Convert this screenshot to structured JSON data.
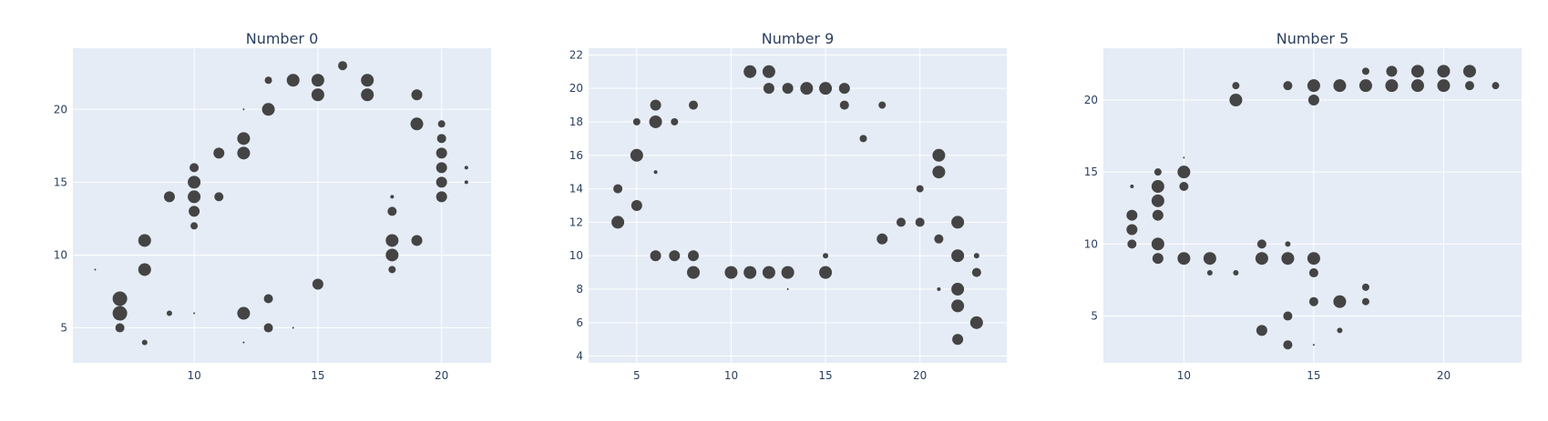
{
  "figure": {
    "background": "#ffffff",
    "plot_bg": "#e5ecf6",
    "grid_color": "#ffffff",
    "marker_color": "#444444",
    "text_color": "#2a3f5f"
  },
  "chart_data": [
    {
      "type": "scatter",
      "title": "Number 0",
      "xlabel": "",
      "ylabel": "",
      "xlim": [
        5.1,
        22.0
      ],
      "ylim": [
        2.6,
        24.2
      ],
      "xticks": [
        10,
        15,
        20
      ],
      "yticks": [
        5,
        10,
        15,
        20
      ],
      "grid": true,
      "legend": "none",
      "points": [
        [
          6,
          9,
          1
        ],
        [
          7,
          7,
          8
        ],
        [
          7,
          6,
          8
        ],
        [
          7,
          5,
          5
        ],
        [
          8,
          11,
          7
        ],
        [
          8,
          9,
          7
        ],
        [
          8,
          4,
          3
        ],
        [
          9,
          14,
          6
        ],
        [
          9,
          6,
          3
        ],
        [
          10,
          16,
          5
        ],
        [
          10,
          15,
          7
        ],
        [
          10,
          14,
          7
        ],
        [
          10,
          13,
          6
        ],
        [
          10,
          12,
          4
        ],
        [
          10,
          6,
          1
        ],
        [
          11,
          17,
          6
        ],
        [
          11,
          14,
          5
        ],
        [
          12,
          20,
          1
        ],
        [
          12,
          18,
          7
        ],
        [
          12,
          17,
          7
        ],
        [
          12,
          6,
          7
        ],
        [
          12,
          4,
          1
        ],
        [
          13,
          22,
          4
        ],
        [
          13,
          20,
          7
        ],
        [
          13,
          7,
          5
        ],
        [
          13,
          5,
          5
        ],
        [
          14,
          22,
          7
        ],
        [
          14,
          5,
          1
        ],
        [
          15,
          22,
          7
        ],
        [
          15,
          21,
          7
        ],
        [
          15,
          8,
          6
        ],
        [
          16,
          23,
          5
        ],
        [
          17,
          22,
          7
        ],
        [
          17,
          21,
          7
        ],
        [
          18,
          14,
          2
        ],
        [
          18,
          13,
          5
        ],
        [
          18,
          11,
          7
        ],
        [
          18,
          10,
          7
        ],
        [
          18,
          9,
          4
        ],
        [
          19,
          21,
          6
        ],
        [
          19,
          19,
          7
        ],
        [
          19,
          11,
          6
        ],
        [
          20,
          19,
          4
        ],
        [
          20,
          18,
          5
        ],
        [
          20,
          17,
          6
        ],
        [
          20,
          16,
          6
        ],
        [
          20,
          15,
          6
        ],
        [
          20,
          14,
          6
        ],
        [
          21,
          16,
          2
        ],
        [
          21,
          15,
          2
        ]
      ]
    },
    {
      "type": "scatter",
      "title": "Number 9",
      "xlabel": "",
      "ylabel": "",
      "xlim": [
        2.45,
        24.6
      ],
      "ylim": [
        3.6,
        22.4
      ],
      "xticks": [
        5,
        10,
        15,
        20
      ],
      "yticks": [
        4,
        6,
        8,
        10,
        12,
        14,
        16,
        18,
        20,
        22
      ],
      "grid": true,
      "legend": "none",
      "points": [
        [
          4,
          14,
          5
        ],
        [
          4,
          12,
          7
        ],
        [
          5,
          18,
          4
        ],
        [
          5,
          16,
          7
        ],
        [
          5,
          13,
          6
        ],
        [
          6,
          19,
          6
        ],
        [
          6,
          18,
          7
        ],
        [
          6,
          15,
          2
        ],
        [
          6,
          10,
          6
        ],
        [
          7,
          18,
          4
        ],
        [
          7,
          10,
          6
        ],
        [
          8,
          19,
          5
        ],
        [
          8,
          10,
          6
        ],
        [
          8,
          9,
          7
        ],
        [
          10,
          9,
          7
        ],
        [
          11,
          21,
          7
        ],
        [
          11,
          9,
          7
        ],
        [
          12,
          21,
          7
        ],
        [
          12,
          20,
          6
        ],
        [
          12,
          9,
          7
        ],
        [
          13,
          20,
          6
        ],
        [
          13,
          9,
          7
        ],
        [
          13,
          8,
          1
        ],
        [
          14,
          20,
          7
        ],
        [
          15,
          20,
          7
        ],
        [
          15,
          10,
          3
        ],
        [
          15,
          9,
          7
        ],
        [
          16,
          20,
          6
        ],
        [
          16,
          19,
          5
        ],
        [
          17,
          17,
          4
        ],
        [
          18,
          19,
          4
        ],
        [
          18,
          11,
          6
        ],
        [
          19,
          12,
          5
        ],
        [
          20,
          14,
          4
        ],
        [
          20,
          12,
          5
        ],
        [
          21,
          16,
          7
        ],
        [
          21,
          15,
          7
        ],
        [
          21,
          11,
          5
        ],
        [
          21,
          8,
          2
        ],
        [
          22,
          12,
          7
        ],
        [
          22,
          10,
          7
        ],
        [
          22,
          8,
          7
        ],
        [
          22,
          7,
          7
        ],
        [
          22,
          5,
          6
        ],
        [
          23,
          10,
          3
        ],
        [
          23,
          9,
          5
        ],
        [
          23,
          6,
          7
        ]
      ]
    },
    {
      "type": "scatter",
      "title": "Number 5",
      "xlabel": "",
      "ylabel": "",
      "xlim": [
        6.9,
        23.0
      ],
      "ylim": [
        1.75,
        23.6
      ],
      "xticks": [
        10,
        15,
        20
      ],
      "yticks": [
        5,
        10,
        15,
        20
      ],
      "grid": true,
      "legend": "none",
      "points": [
        [
          8,
          14,
          2
        ],
        [
          8,
          12,
          6
        ],
        [
          8,
          11,
          6
        ],
        [
          8,
          10,
          5
        ],
        [
          9,
          15,
          4
        ],
        [
          9,
          14,
          7
        ],
        [
          9,
          13,
          7
        ],
        [
          9,
          12,
          6
        ],
        [
          9,
          10,
          7
        ],
        [
          9,
          9,
          6
        ],
        [
          10,
          16,
          1
        ],
        [
          10,
          15,
          7
        ],
        [
          10,
          14,
          5
        ],
        [
          10,
          9,
          7
        ],
        [
          11,
          9,
          7
        ],
        [
          11,
          8,
          3
        ],
        [
          12,
          21,
          4
        ],
        [
          12,
          20,
          7
        ],
        [
          12,
          8,
          3
        ],
        [
          13,
          10,
          5
        ],
        [
          13,
          9,
          7
        ],
        [
          13,
          4,
          6
        ],
        [
          14,
          21,
          5
        ],
        [
          14,
          10,
          3
        ],
        [
          14,
          9,
          7
        ],
        [
          14,
          5,
          5
        ],
        [
          14,
          3,
          5
        ],
        [
          15,
          21,
          7
        ],
        [
          15,
          20,
          6
        ],
        [
          15,
          9,
          7
        ],
        [
          15,
          8,
          5
        ],
        [
          15,
          6,
          5
        ],
        [
          15,
          3,
          1
        ],
        [
          16,
          21,
          7
        ],
        [
          16,
          6,
          7
        ],
        [
          16,
          4,
          3
        ],
        [
          17,
          22,
          4
        ],
        [
          17,
          21,
          7
        ],
        [
          17,
          7,
          4
        ],
        [
          17,
          6,
          4
        ],
        [
          18,
          22,
          6
        ],
        [
          18,
          21,
          7
        ],
        [
          19,
          22,
          7
        ],
        [
          19,
          21,
          7
        ],
        [
          20,
          22,
          7
        ],
        [
          20,
          21,
          7
        ],
        [
          21,
          22,
          7
        ],
        [
          21,
          21,
          5
        ],
        [
          22,
          21,
          4
        ]
      ]
    }
  ]
}
